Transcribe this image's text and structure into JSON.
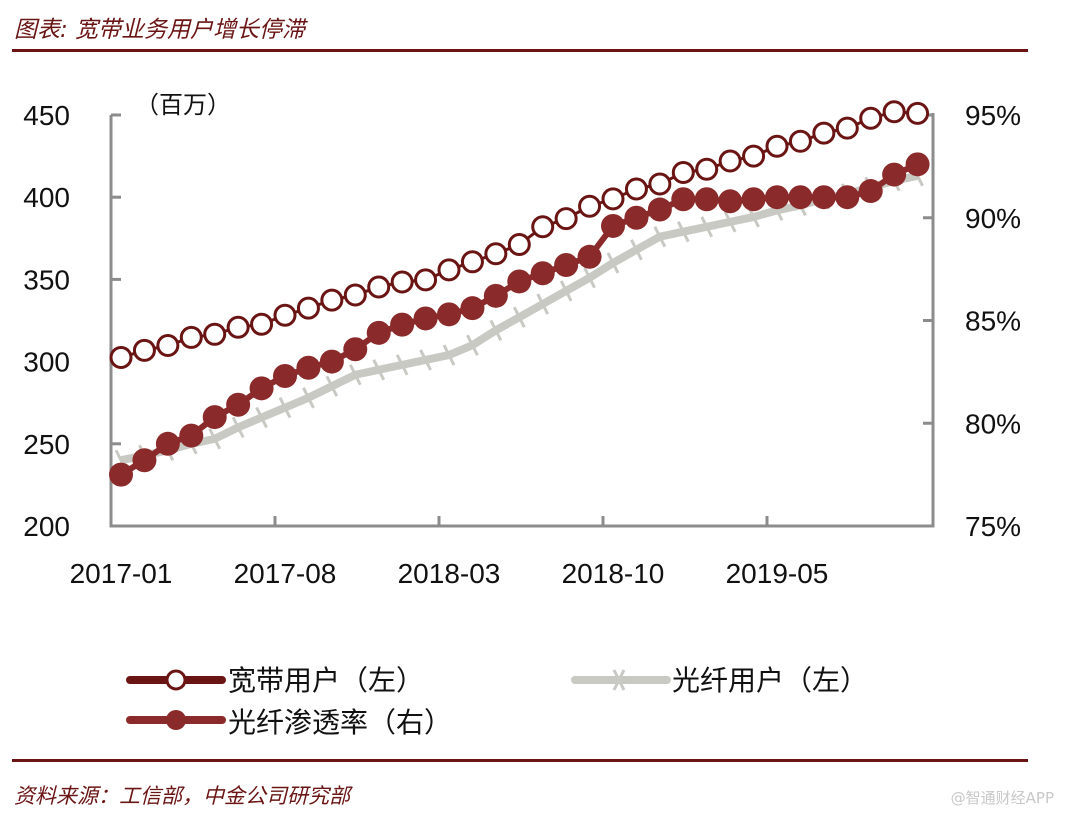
{
  "header": {
    "title": "图表: 宽带业务用户增长停滞"
  },
  "footer": {
    "source": "资料来源：工信部，中金公司研究部",
    "watermark": "@智通财经APP"
  },
  "colors": {
    "accent": "#6b1414",
    "broadband": "#6b1414",
    "fiber_users": "#c9c9c4",
    "penetration": "#8b2a2a",
    "axis": "#8c8c8c"
  },
  "chart_data": {
    "type": "line",
    "title": "",
    "left_unit_label": "（百万）",
    "x_tick_labels": [
      "2017-01",
      "2017-08",
      "2018-03",
      "2018-10",
      "2019-05"
    ],
    "x": [
      "2017-01",
      "2017-02",
      "2017-03",
      "2017-04",
      "2017-05",
      "2017-06",
      "2017-07",
      "2017-08",
      "2017-09",
      "2017-10",
      "2017-11",
      "2017-12",
      "2018-01",
      "2018-02",
      "2018-03",
      "2018-04",
      "2018-05",
      "2018-06",
      "2018-07",
      "2018-08",
      "2018-09",
      "2018-10",
      "2018-11",
      "2018-12",
      "2019-01",
      "2019-02",
      "2019-03",
      "2019-04",
      "2019-05",
      "2019-06",
      "2019-07",
      "2019-08",
      "2019-09",
      "2019-10",
      "2019-11"
    ],
    "y_left": {
      "range": [
        200,
        450
      ],
      "ticks": [
        "200",
        "250",
        "300",
        "350",
        "400",
        "450"
      ]
    },
    "y_right": {
      "range": [
        75,
        95
      ],
      "ticks": [
        "75%",
        "80%",
        "85%",
        "90%",
        "95%"
      ]
    },
    "grid": false,
    "legend_position": "bottom",
    "series": [
      {
        "name": "宽带用户（左）",
        "axis": "left",
        "marker": "open-circle",
        "values": [
          302.5,
          306.8,
          309.8,
          314.7,
          316.6,
          320.9,
          322.7,
          328.2,
          332.5,
          337.4,
          340.5,
          345.4,
          348.4,
          349.7,
          355.8,
          360.7,
          365.6,
          371.2,
          382,
          387,
          394.5,
          399,
          405,
          408,
          415,
          417,
          422,
          425,
          431,
          434,
          439,
          442,
          448,
          452,
          451
        ]
      },
      {
        "name": "光纤用户（左）",
        "axis": "left",
        "marker": "cross",
        "values": [
          240,
          243,
          246,
          250,
          253,
          260,
          266,
          272,
          278,
          285,
          292,
          295,
          298,
          301,
          304,
          310,
          319,
          327,
          335,
          343,
          351,
          360,
          368,
          376,
          379,
          382,
          385,
          388,
          392,
          395,
          399,
          402,
          406,
          410,
          413
        ]
      },
      {
        "name": "光纤渗透率（右）",
        "axis": "right",
        "marker": "filled-circle",
        "values": [
          77.5,
          78.2,
          79.0,
          79.4,
          80.3,
          80.9,
          81.7,
          82.3,
          82.7,
          83.0,
          83.6,
          84.4,
          84.8,
          85.1,
          85.3,
          85.6,
          86.2,
          86.9,
          87.3,
          87.7,
          88.1,
          89.6,
          90.0,
          90.4,
          90.9,
          90.9,
          90.8,
          90.9,
          91.0,
          91.0,
          91.0,
          91.0,
          91.3,
          92.1,
          92.6
        ]
      }
    ]
  }
}
